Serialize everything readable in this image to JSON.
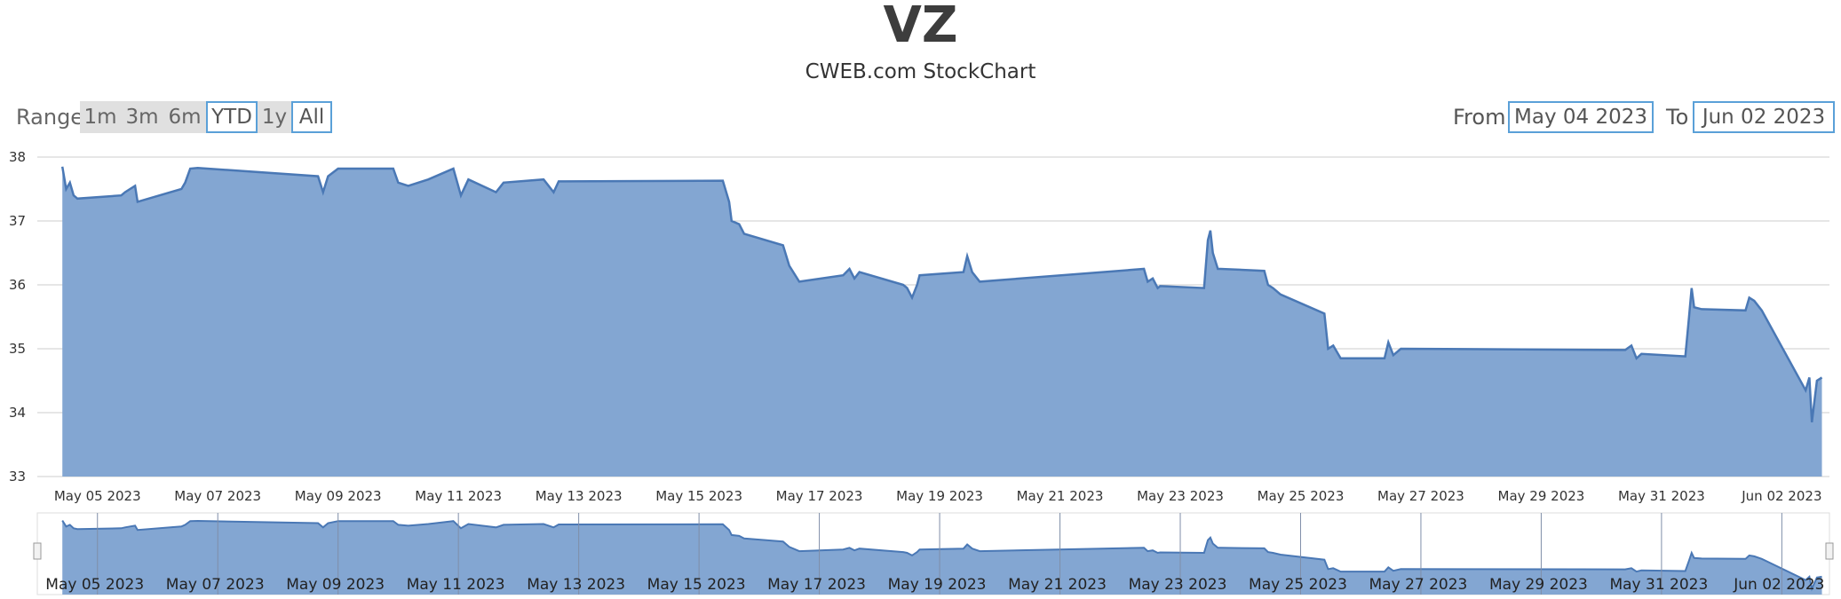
{
  "title": "VZ",
  "subtitle": "CWEB.com StockChart",
  "range_selector": {
    "label": "Range",
    "buttons": [
      "1m",
      "3m",
      "6m",
      "YTD",
      "1y",
      "All"
    ],
    "selected": [
      "YTD",
      "All"
    ]
  },
  "date_range": {
    "from_label": "From",
    "from_value": "May 04 2023",
    "to_label": "To",
    "to_value": "Jun 02 2023"
  },
  "colors": {
    "area_fill": "#83a6d2",
    "line": "#4a78b5",
    "accent": "#5aa0d8"
  },
  "chart_data": {
    "type": "area",
    "ylim": [
      33,
      38
    ],
    "yticks": [
      33,
      34,
      35,
      36,
      37,
      38
    ],
    "xticks": [
      "May 05 2023",
      "May 07 2023",
      "May 09 2023",
      "May 11 2023",
      "May 13 2023",
      "May 15 2023",
      "May 17 2023",
      "May 19 2023",
      "May 21 2023",
      "May 23 2023",
      "May 25 2023",
      "May 27 2023",
      "May 29 2023",
      "May 31 2023",
      "Jun 02 2023"
    ],
    "navigator_ticks": [
      "May 05 2023",
      "May 07 2023",
      "May 09 2023",
      "May 11 2023",
      "May 13 2023",
      "May 15 2023",
      "May 17 2023",
      "May 19 2023",
      "May 21 2023",
      "May 23 2023",
      "May 25 2023",
      "May 27 2023",
      "May 29 2023",
      "May 31 2023",
      "Jun 02 2023"
    ],
    "grid": true,
    "series": [
      {
        "points": [
          [
            "2023-05-04 10:00",
            37.85
          ],
          [
            "2023-05-04 11:30",
            37.5
          ],
          [
            "2023-05-04 13:00",
            37.6
          ],
          [
            "2023-05-04 14:30",
            37.4
          ],
          [
            "2023-05-04 16:00",
            37.35
          ],
          [
            "2023-05-05 09:30",
            37.4
          ],
          [
            "2023-05-05 11:00",
            37.45
          ],
          [
            "2023-05-05 13:00",
            37.5
          ],
          [
            "2023-05-05 15:00",
            37.55
          ],
          [
            "2023-05-05 16:00",
            37.3
          ],
          [
            "2023-05-06 09:30",
            37.5
          ],
          [
            "2023-05-06 11:00",
            37.6
          ],
          [
            "2023-05-06 13:00",
            37.82
          ],
          [
            "2023-05-06 16:00",
            37.83
          ],
          [
            "2023-05-08 16:00",
            37.7
          ],
          [
            "2023-05-08 18:00",
            37.45
          ],
          [
            "2023-05-08 20:00",
            37.7
          ],
          [
            "2023-05-09 00:00",
            37.82
          ],
          [
            "2023-05-09 12:00",
            37.82
          ],
          [
            "2023-05-09 22:00",
            37.82
          ],
          [
            "2023-05-10 00:00",
            37.6
          ],
          [
            "2023-05-10 04:00",
            37.55
          ],
          [
            "2023-05-10 12:00",
            37.65
          ],
          [
            "2023-05-10 22:00",
            37.82
          ],
          [
            "2023-05-11 01:00",
            37.4
          ],
          [
            "2023-05-11 04:00",
            37.65
          ],
          [
            "2023-05-11 15:00",
            37.45
          ],
          [
            "2023-05-11 18:00",
            37.6
          ],
          [
            "2023-05-12 10:00",
            37.65
          ],
          [
            "2023-05-12 14:00",
            37.45
          ],
          [
            "2023-05-12 16:00",
            37.62
          ],
          [
            "2023-05-15 09:30",
            37.63
          ],
          [
            "2023-05-15 12:00",
            37.3
          ],
          [
            "2023-05-15 13:00",
            37.0
          ],
          [
            "2023-05-15 16:00",
            36.95
          ],
          [
            "2023-05-15 18:00",
            36.8
          ],
          [
            "2023-05-16 09:30",
            36.62
          ],
          [
            "2023-05-16 12:00",
            36.3
          ],
          [
            "2023-05-16 16:00",
            36.05
          ],
          [
            "2023-05-17 09:30",
            36.15
          ],
          [
            "2023-05-17 12:00",
            36.25
          ],
          [
            "2023-05-17 14:00",
            36.1
          ],
          [
            "2023-05-17 16:00",
            36.2
          ],
          [
            "2023-05-18 09:30",
            36.0
          ],
          [
            "2023-05-18 11:00",
            35.95
          ],
          [
            "2023-05-18 13:00",
            35.8
          ],
          [
            "2023-05-18 15:00",
            36.0
          ],
          [
            "2023-05-18 16:00",
            36.15
          ],
          [
            "2023-05-19 09:30",
            36.2
          ],
          [
            "2023-05-19 11:00",
            36.45
          ],
          [
            "2023-05-19 13:00",
            36.2
          ],
          [
            "2023-05-19 16:00",
            36.05
          ],
          [
            "2023-05-22 09:30",
            36.25
          ],
          [
            "2023-05-22 11:00",
            36.05
          ],
          [
            "2023-05-22 13:00",
            36.1
          ],
          [
            "2023-05-22 15:00",
            35.95
          ],
          [
            "2023-05-22 16:00",
            35.98
          ],
          [
            "2023-05-23 09:30",
            35.95
          ],
          [
            "2023-05-23 11:00",
            36.7
          ],
          [
            "2023-05-23 12:00",
            36.85
          ],
          [
            "2023-05-23 13:00",
            36.5
          ],
          [
            "2023-05-23 15:00",
            36.25
          ],
          [
            "2023-05-23 16:00",
            36.25
          ],
          [
            "2023-05-24 09:30",
            36.22
          ],
          [
            "2023-05-24 11:00",
            36.0
          ],
          [
            "2023-05-24 13:00",
            35.95
          ],
          [
            "2023-05-24 16:00",
            35.85
          ],
          [
            "2023-05-25 09:30",
            35.55
          ],
          [
            "2023-05-25 11:00",
            35.0
          ],
          [
            "2023-05-25 13:00",
            35.05
          ],
          [
            "2023-05-25 16:00",
            34.85
          ],
          [
            "2023-05-26 09:30",
            34.85
          ],
          [
            "2023-05-26 11:00",
            35.1
          ],
          [
            "2023-05-26 13:00",
            34.9
          ],
          [
            "2023-05-26 16:00",
            35.0
          ],
          [
            "2023-05-30 09:30",
            34.98
          ],
          [
            "2023-05-30 12:00",
            35.05
          ],
          [
            "2023-05-30 14:00",
            34.85
          ],
          [
            "2023-05-30 16:00",
            34.92
          ],
          [
            "2023-05-31 09:30",
            34.88
          ],
          [
            "2023-05-31 11:00",
            35.5
          ],
          [
            "2023-05-31 12:00",
            35.95
          ],
          [
            "2023-05-31 13:00",
            35.65
          ],
          [
            "2023-05-31 16:00",
            35.62
          ],
          [
            "2023-06-01 09:30",
            35.6
          ],
          [
            "2023-06-01 11:00",
            35.8
          ],
          [
            "2023-06-01 13:00",
            35.75
          ],
          [
            "2023-06-01 16:00",
            35.6
          ],
          [
            "2023-06-02 09:30",
            34.35
          ],
          [
            "2023-06-02 11:00",
            34.55
          ],
          [
            "2023-06-02 12:00",
            33.85
          ],
          [
            "2023-06-02 14:00",
            34.5
          ],
          [
            "2023-06-02 16:00",
            34.55
          ]
        ]
      }
    ]
  }
}
